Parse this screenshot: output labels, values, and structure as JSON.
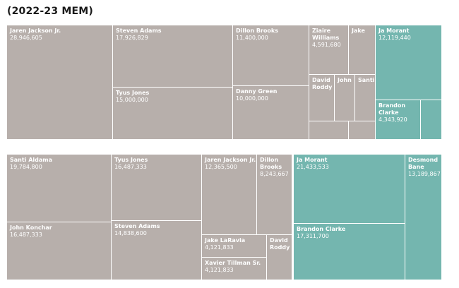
{
  "page": {
    "title": "(2022-23 MEM)"
  },
  "colors": {
    "gray": "#b7afab",
    "teal": "#74b6af",
    "divider": "#ffffff"
  },
  "chart_data": [
    {
      "type": "treemap",
      "tiles": [
        {
          "name": "Jaren Jackson Jr.",
          "value": "28,946,605",
          "color": "gray"
        },
        {
          "name": "Steven Adams",
          "value": "17,926,829",
          "color": "gray"
        },
        {
          "name": "Tyus Jones",
          "value": "15,000,000",
          "color": "gray"
        },
        {
          "name": "Dillon Brooks",
          "value": "11,400,000",
          "color": "gray"
        },
        {
          "name": "Danny Green",
          "value": "10,000,000",
          "color": "gray"
        },
        {
          "name": "Ziaire Williams",
          "value": "4,591,680",
          "color": "gray"
        },
        {
          "name": "Jake",
          "value": "",
          "color": "gray"
        },
        {
          "name": "David Roddy",
          "value": "",
          "color": "gray"
        },
        {
          "name": "John",
          "value": "",
          "color": "gray"
        },
        {
          "name": "Santi",
          "value": "",
          "color": "gray"
        },
        {
          "name": "",
          "value": "",
          "color": "gray"
        },
        {
          "name": "",
          "value": "",
          "color": "gray"
        },
        {
          "name": "",
          "value": "",
          "color": "gray"
        },
        {
          "name": "Ja Morant",
          "value": "12,119,440",
          "color": "teal"
        },
        {
          "name": "Brandon Clarke",
          "value": "4,343,920",
          "color": "teal"
        },
        {
          "name": "",
          "value": "",
          "color": "teal"
        }
      ]
    },
    {
      "type": "treemap",
      "tiles": [
        {
          "name": "Santi Aldama",
          "value": "19,784,800",
          "color": "gray"
        },
        {
          "name": "John Konchar",
          "value": "16,487,333",
          "color": "gray"
        },
        {
          "name": "Tyus Jones",
          "value": "16,487,333",
          "color": "gray"
        },
        {
          "name": "Steven Adams",
          "value": "14,838,600",
          "color": "gray"
        },
        {
          "name": "Jaren Jackson Jr.",
          "value": "12,365,500",
          "color": "gray"
        },
        {
          "name": "Dillon Brooks",
          "value": "8,243,667",
          "color": "gray"
        },
        {
          "name": "Jake LaRavia",
          "value": "4,121,833",
          "color": "gray"
        },
        {
          "name": "David Roddy",
          "value": "",
          "color": "gray"
        },
        {
          "name": "Xavier Tillman Sr.",
          "value": "4,121,833",
          "color": "gray"
        },
        {
          "name": "Ja Morant",
          "value": "21,433,533",
          "color": "teal"
        },
        {
          "name": "Desmond Bane",
          "value": "13,189,867",
          "color": "teal"
        },
        {
          "name": "Brandon Clarke",
          "value": "17,311,700",
          "color": "teal"
        }
      ]
    }
  ]
}
